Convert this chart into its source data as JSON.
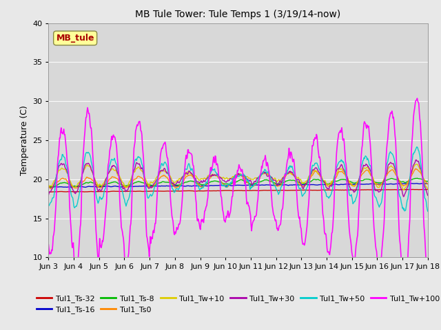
{
  "title": "MB Tule Tower: Tule Temps 1 (3/19/14-now)",
  "ylabel": "Temperature (C)",
  "ylim": [
    10,
    40
  ],
  "yticks": [
    10,
    15,
    20,
    25,
    30,
    35,
    40
  ],
  "xtick_labels": [
    "Jun 3",
    "Jun 4",
    "Jun 5",
    "Jun 6",
    "Jun 7",
    "Jun 8",
    "Jun 9",
    "Jun 10",
    "Jun 11",
    "Jun 12",
    "Jun 13",
    "Jun 14",
    "Jun 15",
    "Jun 16",
    "Jun 17",
    "Jun 18"
  ],
  "series_order": [
    "Tul1_Ts-32",
    "Tul1_Ts-16",
    "Tul1_Ts-8",
    "Tul1_Ts0",
    "Tul1_Tw+10",
    "Tul1_Tw+30",
    "Tul1_Tw+50",
    "Tul1_Tw+100"
  ],
  "series": {
    "Tul1_Ts-32": {
      "color": "#cc0000",
      "lw": 1.0
    },
    "Tul1_Ts-16": {
      "color": "#0000cc",
      "lw": 1.0
    },
    "Tul1_Ts-8": {
      "color": "#00bb00",
      "lw": 1.0
    },
    "Tul1_Ts0": {
      "color": "#ff8800",
      "lw": 1.0
    },
    "Tul1_Tw+10": {
      "color": "#ddcc00",
      "lw": 1.0
    },
    "Tul1_Tw+30": {
      "color": "#aa00aa",
      "lw": 1.0
    },
    "Tul1_Tw+50": {
      "color": "#00cccc",
      "lw": 1.0
    },
    "Tul1_Tw+100": {
      "color": "#ff00ff",
      "lw": 1.2
    }
  },
  "legend_box_color": "#ffff99",
  "legend_box_label": "MB_tule",
  "bg_color": "#e8e8e8",
  "plot_bg_color": "#d8d8d8",
  "grid_color": "#ffffff"
}
